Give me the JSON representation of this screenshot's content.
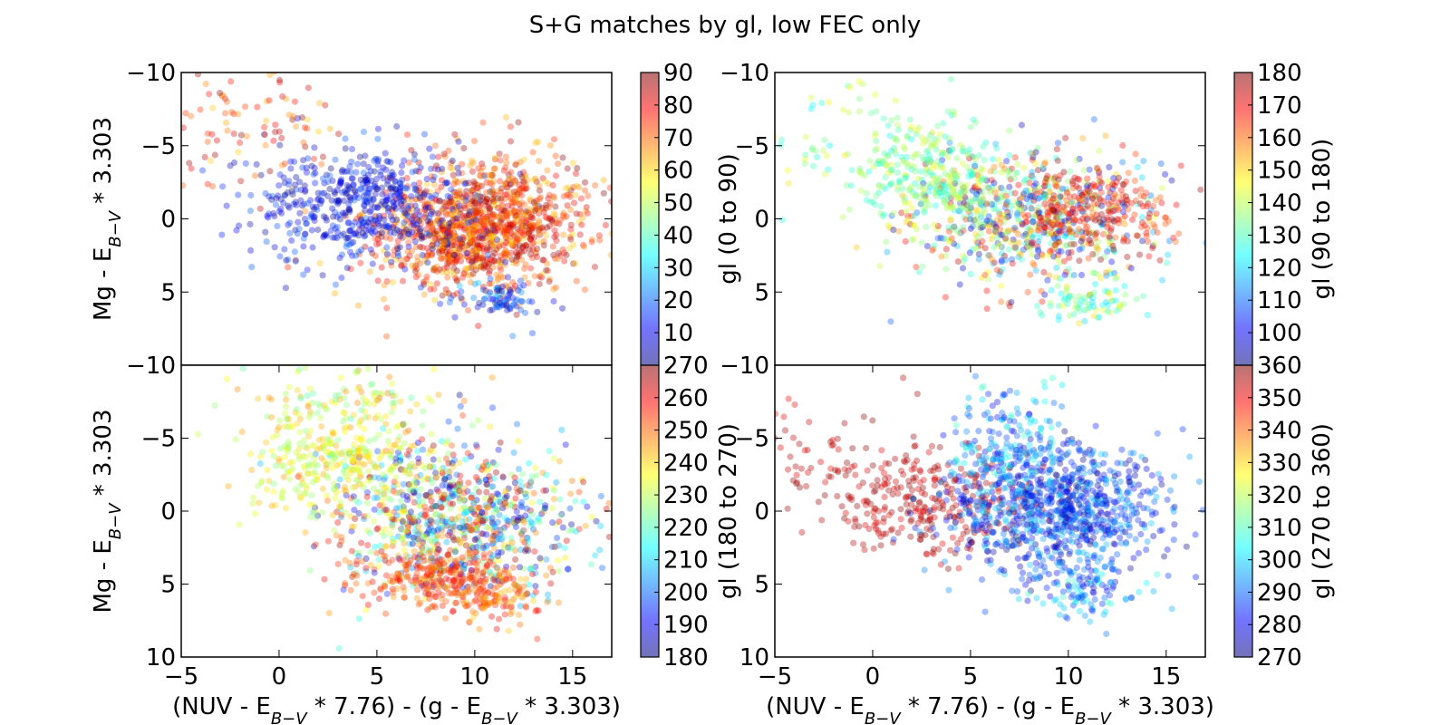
{
  "figure": {
    "title": "S+G matches by gl, low FEC only",
    "colormap": [
      "#00007f",
      "#0000ff",
      "#007fff",
      "#00ffff",
      "#7fff7f",
      "#ffff00",
      "#ff7f00",
      "#ff0000",
      "#7f0000"
    ]
  },
  "chart_data": [
    {
      "type": "scatter",
      "panel": "top-left",
      "ylabel": "Mg - E_{B-V} * 3.303",
      "xlabel": "",
      "xlim": [
        -5,
        17
      ],
      "ylim": [
        10,
        -10
      ],
      "xticks": [],
      "yticks": [
        -10,
        -5,
        0,
        5
      ],
      "ytick_labels": [
        "−10",
        "−5",
        "0",
        "5"
      ],
      "colorbar": {
        "label": "gl (0 to 90)",
        "ticks": [
          10,
          20,
          30,
          40,
          50,
          60,
          70,
          80,
          90
        ],
        "range": [
          0,
          90
        ]
      },
      "clusters": [
        {
          "cx": 9.5,
          "cy": 1.0,
          "sx": 2.6,
          "sy": 2.0,
          "n": 900,
          "gl": [
            60,
            90
          ]
        },
        {
          "cx": 4.5,
          "cy": -1.0,
          "sx": 2.8,
          "sy": 2.0,
          "n": 550,
          "gl": [
            0,
            20
          ]
        },
        {
          "cx": 12.0,
          "cy": -1.0,
          "sx": 2.0,
          "sy": 2.0,
          "n": 300,
          "gl": [
            60,
            90
          ]
        },
        {
          "cx": 11.5,
          "cy": 5.5,
          "sx": 1.2,
          "sy": 0.7,
          "n": 80,
          "gl": [
            0,
            30
          ]
        },
        {
          "cx": -1.5,
          "cy": -6.5,
          "sx": 2.5,
          "sy": 1.8,
          "n": 90,
          "gl": [
            60,
            90
          ]
        }
      ]
    },
    {
      "type": "scatter",
      "panel": "top-right",
      "ylabel": "",
      "xlabel": "",
      "xlim": [
        -5,
        17
      ],
      "ylim": [
        10,
        -10
      ],
      "xticks": [],
      "yticks": [
        -10,
        -5,
        0,
        5
      ],
      "ytick_labels": [
        "−10",
        "−5",
        "0",
        "5"
      ],
      "colorbar": {
        "label": "gl (90 to 180)",
        "ticks": [
          100,
          110,
          120,
          130,
          140,
          150,
          160,
          170,
          180
        ],
        "range": [
          90,
          180
        ]
      },
      "clusters": [
        {
          "cx": 8.0,
          "cy": 0.0,
          "sx": 3.0,
          "sy": 2.2,
          "n": 700,
          "gl": [
            90,
            180
          ]
        },
        {
          "cx": 3.0,
          "cy": -3.0,
          "sx": 2.0,
          "sy": 1.8,
          "n": 300,
          "gl": [
            125,
            145
          ]
        },
        {
          "cx": 11.5,
          "cy": -0.5,
          "sx": 1.8,
          "sy": 1.8,
          "n": 200,
          "gl": [
            160,
            180
          ]
        },
        {
          "cx": 11.0,
          "cy": 5.5,
          "sx": 1.2,
          "sy": 0.8,
          "n": 80,
          "gl": [
            120,
            150
          ]
        },
        {
          "cx": -1.5,
          "cy": -6.0,
          "sx": 2.5,
          "sy": 2.0,
          "n": 60,
          "gl": [
            120,
            150
          ]
        }
      ]
    },
    {
      "type": "scatter",
      "panel": "bottom-left",
      "ylabel": "Mg - E_{B-V} * 3.303",
      "xlabel": "(NUV - E_{B-V} * 7.76) - (g - E_{B-V} * 3.303)",
      "xlim": [
        -5,
        17
      ],
      "ylim": [
        10,
        -10
      ],
      "xticks": [
        -5,
        0,
        5,
        10,
        15
      ],
      "xtick_labels": [
        "−5",
        "0",
        "5",
        "10",
        "15"
      ],
      "yticks": [
        -10,
        -5,
        0,
        5,
        10
      ],
      "ytick_labels": [
        "−10",
        "−5",
        "0",
        "5",
        "10"
      ],
      "colorbar": {
        "label": "gl (180 to 270)",
        "ticks": [
          180,
          190,
          200,
          210,
          220,
          230,
          240,
          250,
          260,
          270
        ],
        "range": [
          180,
          270
        ]
      },
      "clusters": [
        {
          "cx": 9.0,
          "cy": 0.5,
          "sx": 3.0,
          "sy": 2.5,
          "n": 900,
          "gl": [
            180,
            270
          ]
        },
        {
          "cx": 3.0,
          "cy": -3.5,
          "sx": 2.5,
          "sy": 2.0,
          "n": 350,
          "gl": [
            225,
            245
          ]
        },
        {
          "cx": 8.0,
          "cy": 4.5,
          "sx": 2.0,
          "sy": 1.0,
          "n": 250,
          "gl": [
            245,
            262
          ]
        },
        {
          "cx": 11.0,
          "cy": 6.0,
          "sx": 1.2,
          "sy": 0.8,
          "n": 100,
          "gl": [
            240,
            262
          ]
        },
        {
          "cx": 4.0,
          "cy": -8.0,
          "sx": 3.0,
          "sy": 1.0,
          "n": 80,
          "gl": [
            220,
            250
          ]
        }
      ]
    },
    {
      "type": "scatter",
      "panel": "bottom-right",
      "ylabel": "",
      "xlabel": "(NUV - E_{B-V} * 7.76) - (g - E_{B-V} * 3.303)",
      "xlim": [
        -5,
        17
      ],
      "ylim": [
        10,
        -10
      ],
      "xticks": [
        -5,
        0,
        5,
        10,
        15
      ],
      "xtick_labels": [
        "−5",
        "0",
        "5",
        "10",
        "15"
      ],
      "yticks": [
        -10,
        -5,
        0,
        5,
        10
      ],
      "ytick_labels": [
        "−10",
        "−5",
        "0",
        "5",
        "10"
      ],
      "colorbar": {
        "label": "gl (270 to 360)",
        "ticks": [
          270,
          280,
          290,
          300,
          310,
          320,
          330,
          340,
          350,
          360
        ],
        "tick_labels_top": "300",
        "range": [
          270,
          360
        ]
      },
      "clusters": [
        {
          "cx": 3.0,
          "cy": -0.5,
          "sx": 2.5,
          "sy": 1.8,
          "n": 300,
          "gl": [
            350,
            360
          ]
        },
        {
          "cx": -2.0,
          "cy": -4.0,
          "sx": 1.8,
          "sy": 2.0,
          "n": 60,
          "gl": [
            350,
            360
          ]
        },
        {
          "cx": 9.5,
          "cy": 0.0,
          "sx": 2.8,
          "sy": 2.2,
          "n": 900,
          "gl": [
            270,
            300
          ]
        },
        {
          "cx": 7.0,
          "cy": -4.5,
          "sx": 1.5,
          "sy": 2.0,
          "n": 200,
          "gl": [
            280,
            310
          ]
        },
        {
          "cx": 11.0,
          "cy": 5.5,
          "sx": 1.3,
          "sy": 1.0,
          "n": 100,
          "gl": [
            280,
            310
          ]
        }
      ]
    }
  ]
}
